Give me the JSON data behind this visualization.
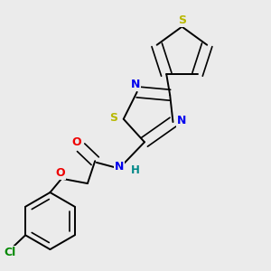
{
  "background_color": "#ebebeb",
  "bond_color": "#000000",
  "atom_colors": {
    "S_thiophene": "#b8b800",
    "S_thiadiazole": "#b8b800",
    "N": "#0000ee",
    "O": "#ee0000",
    "Cl": "#008800",
    "H": "#008888",
    "C": "#000000"
  },
  "figsize": [
    3.0,
    3.0
  ],
  "dpi": 100
}
